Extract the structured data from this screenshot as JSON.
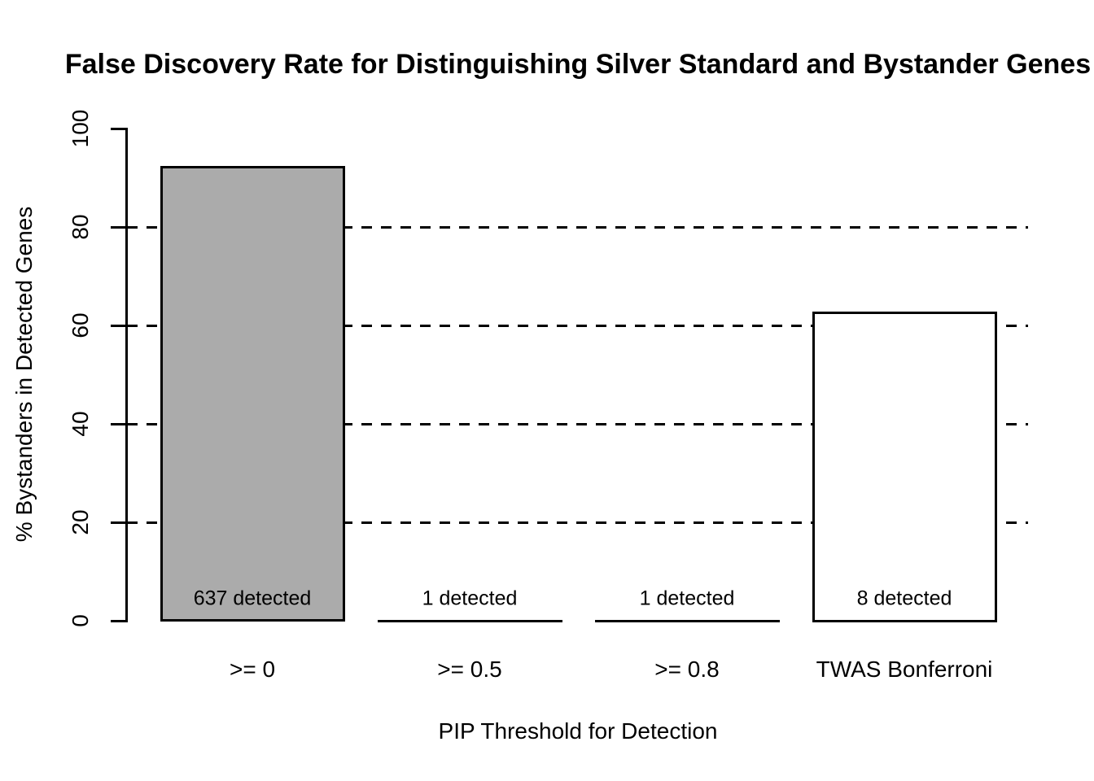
{
  "chart_data": {
    "type": "bar",
    "title": "False Discovery Rate for Distinguishing Silver Standard and Bystander Genes",
    "title_truncated_visible": "False Discovery Rate for Distinguishing Silver Standard and Bystander Ge",
    "xlabel": "PIP Threshold for Detection",
    "ylabel": "% Bystanders in Detected Genes",
    "categories": [
      ">= 0",
      ">= 0.5",
      ">= 0.8",
      "TWAS Bonferroni"
    ],
    "values": [
      92.2,
      0,
      0,
      62.5
    ],
    "bar_labels": [
      "637 detected",
      "1 detected",
      "1 detected",
      "8 detected"
    ],
    "detected_counts": [
      637,
      1,
      1,
      8
    ],
    "bar_fills": [
      "#ABABAB",
      "#ABABAB",
      "#ABABAB",
      "#FFFFFF"
    ],
    "ylim": [
      0,
      100
    ],
    "yticks": [
      0,
      20,
      40,
      60,
      80,
      100
    ],
    "gridlines": [
      20,
      40,
      60,
      80
    ],
    "grid_style": "dashed",
    "legend": "none",
    "colors": {
      "line": "#000000",
      "text": "#000000",
      "background": "#FFFFFF",
      "gray_bar": "#ABABAB",
      "white_bar": "#FFFFFF"
    }
  }
}
